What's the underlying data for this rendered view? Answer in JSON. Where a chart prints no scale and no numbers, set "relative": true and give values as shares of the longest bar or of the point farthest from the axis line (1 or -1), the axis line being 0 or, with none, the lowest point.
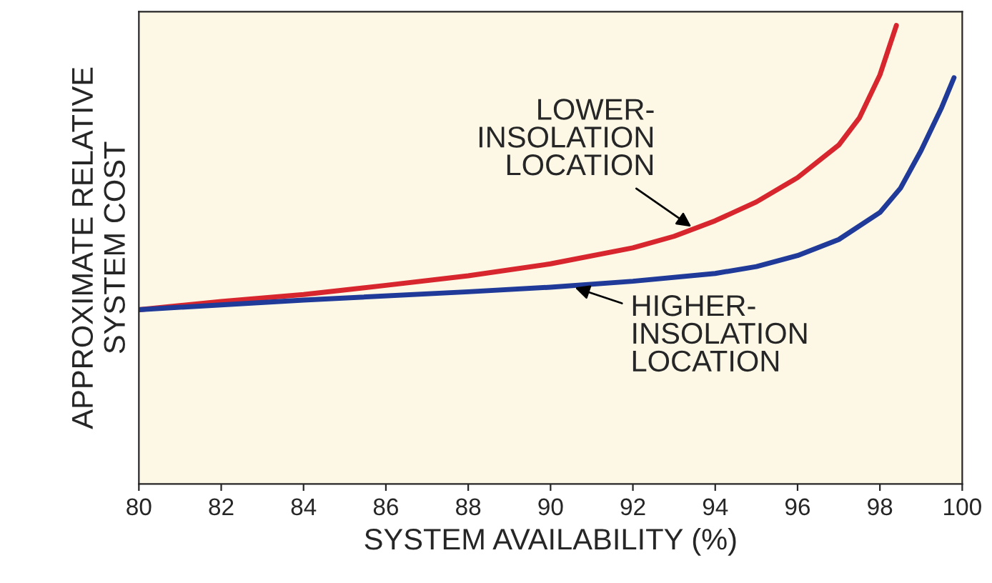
{
  "chart_data": {
    "type": "line",
    "relative": true,
    "xlabel": "SYSTEM AVAILABILITY (%)",
    "ylabel": "APPROXIMATE RELATIVE\nSYSTEM COST",
    "xlim": [
      80,
      100
    ],
    "xticks": [
      80,
      82,
      84,
      86,
      88,
      90,
      92,
      94,
      96,
      98,
      100
    ],
    "series": [
      {
        "color": "#d8262e",
        "x": [
          80,
          82,
          84,
          86,
          88,
          90,
          92,
          93,
          94,
          95,
          96,
          97,
          97.5,
          98,
          98.4
        ],
        "values": [
          0.38,
          0.398,
          0.413,
          0.433,
          0.454,
          0.48,
          0.515,
          0.54,
          0.574,
          0.615,
          0.668,
          0.739,
          0.798,
          0.892,
          1.0
        ]
      },
      {
        "color": "#1f3a99",
        "x": [
          80,
          84,
          88,
          90,
          92,
          94,
          95,
          96,
          97,
          98,
          98.5,
          99,
          99.5,
          99.8
        ],
        "values": [
          0.38,
          0.401,
          0.419,
          0.429,
          0.442,
          0.459,
          0.474,
          0.498,
          0.533,
          0.592,
          0.645,
          0.727,
          0.821,
          0.886
        ]
      }
    ],
    "annotations": [
      {
        "text": "LOWER-\nINSOLATION\nLOCATION",
        "x": 93.5,
        "y": 0.556
      },
      {
        "text": "HIGHER-\nINSOLATION\nLOCATION",
        "x": 90.5,
        "y": 0.431
      }
    ],
    "grid": false,
    "legend": false
  }
}
